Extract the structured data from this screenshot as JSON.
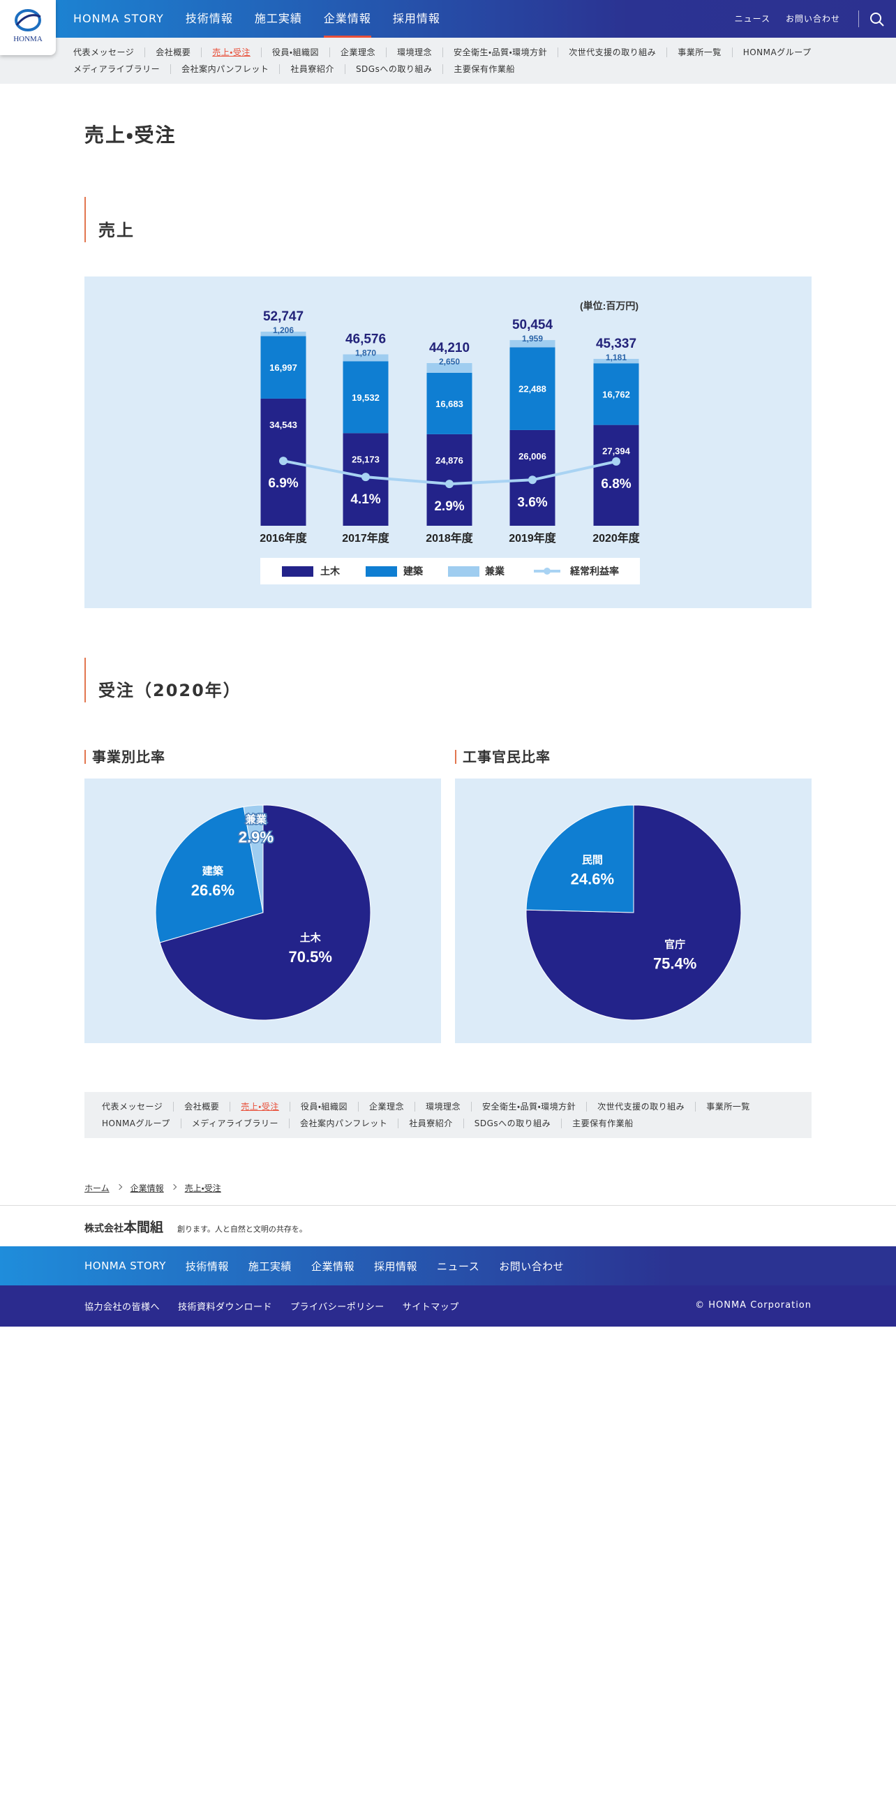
{
  "header": {
    "logo": "HONMA",
    "nav": [
      "HONMA STORY",
      "技術情報",
      "施工実績",
      "企業情報",
      "採用情報"
    ],
    "active_nav": 3,
    "utility": [
      "ニュース",
      "お問い合わせ"
    ]
  },
  "subnav": {
    "items": [
      "代表メッセージ",
      "会社概要",
      "売上・受注",
      "役員・組織図",
      "企業理念",
      "環境理念",
      "安全衛生・品質・環境方針",
      "次世代支援の取り組み",
      "事業所一覧",
      "HONMAグループ",
      "メディアライブラリー",
      "会社案内パンフレット",
      "社員寮紹介",
      "SDGsへの取り組み",
      "主要保有作業船"
    ],
    "active": 2
  },
  "page_title": "売上・受注",
  "sales": {
    "title": "売上",
    "chart": {
      "type": "stacked-bar-line",
      "unit": "(単位:百万円)",
      "categories": [
        "2016年度",
        "2017年度",
        "2018年度",
        "2019年度",
        "2020年度"
      ],
      "series": [
        {
          "name": "土木",
          "color": "#23238a",
          "values": [
            34543,
            25173,
            24876,
            26006,
            27394
          ],
          "value_labels": [
            "34,543",
            "25,173",
            "24,876",
            "26,006",
            "27,394"
          ]
        },
        {
          "name": "建築",
          "color": "#0f7ed2",
          "values": [
            16997,
            19532,
            16683,
            22488,
            16762
          ],
          "value_labels": [
            "16,997",
            "19,532",
            "16,683",
            "22,488",
            "16,762"
          ]
        },
        {
          "name": "兼業",
          "color": "#9fcdf0",
          "values": [
            1206,
            1870,
            2650,
            1959,
            1181
          ],
          "value_labels": [
            "1,206",
            "1,870",
            "2,650",
            "1,959",
            "1,181"
          ]
        }
      ],
      "totals": [
        52747,
        46576,
        44210,
        50454,
        45337
      ],
      "total_labels": [
        "52,747",
        "46,576",
        "44,210",
        "50,454",
        "45,337"
      ],
      "line": {
        "name": "経常利益率",
        "color": "#a9d3f3",
        "values": [
          6.9,
          4.1,
          2.9,
          3.6,
          6.8
        ],
        "value_labels": [
          "6.9%",
          "4.1%",
          "2.9%",
          "3.6%",
          "6.8%"
        ]
      }
    }
  },
  "orders": {
    "title": "受注（2020年）",
    "charts": [
      {
        "type": "pie",
        "title": "事業別比率",
        "categories": [
          "土木",
          "建築",
          "兼業"
        ],
        "values": [
          70.5,
          26.6,
          2.9
        ],
        "value_labels": [
          "70.5%",
          "26.6%",
          "2.9%"
        ],
        "colors": [
          "#23238a",
          "#0f7ed2",
          "#9fcdf0"
        ]
      },
      {
        "type": "pie",
        "title": "工事官民比率",
        "categories": [
          "官庁",
          "民間"
        ],
        "values": [
          75.4,
          24.6
        ],
        "value_labels": [
          "75.4%",
          "24.6%"
        ],
        "colors": [
          "#23238a",
          "#0f7ed2"
        ]
      }
    ]
  },
  "breadcrumb": [
    "ホーム",
    "企業情報",
    "売上・受注"
  ],
  "footer": {
    "company_prefix": "株式会社",
    "company_name": "本間組",
    "tagline": "創ります。人と自然と文明の共存を。",
    "nav": [
      "HONMA STORY",
      "技術情報",
      "施工実績",
      "企業情報",
      "採用情報",
      "ニュース",
      "お問い合わせ"
    ],
    "links": [
      "協力会社の皆様へ",
      "技術資料ダウンロード",
      "プライバシーポリシー",
      "サイトマップ"
    ],
    "copyright": "© HONMA Corporation"
  }
}
